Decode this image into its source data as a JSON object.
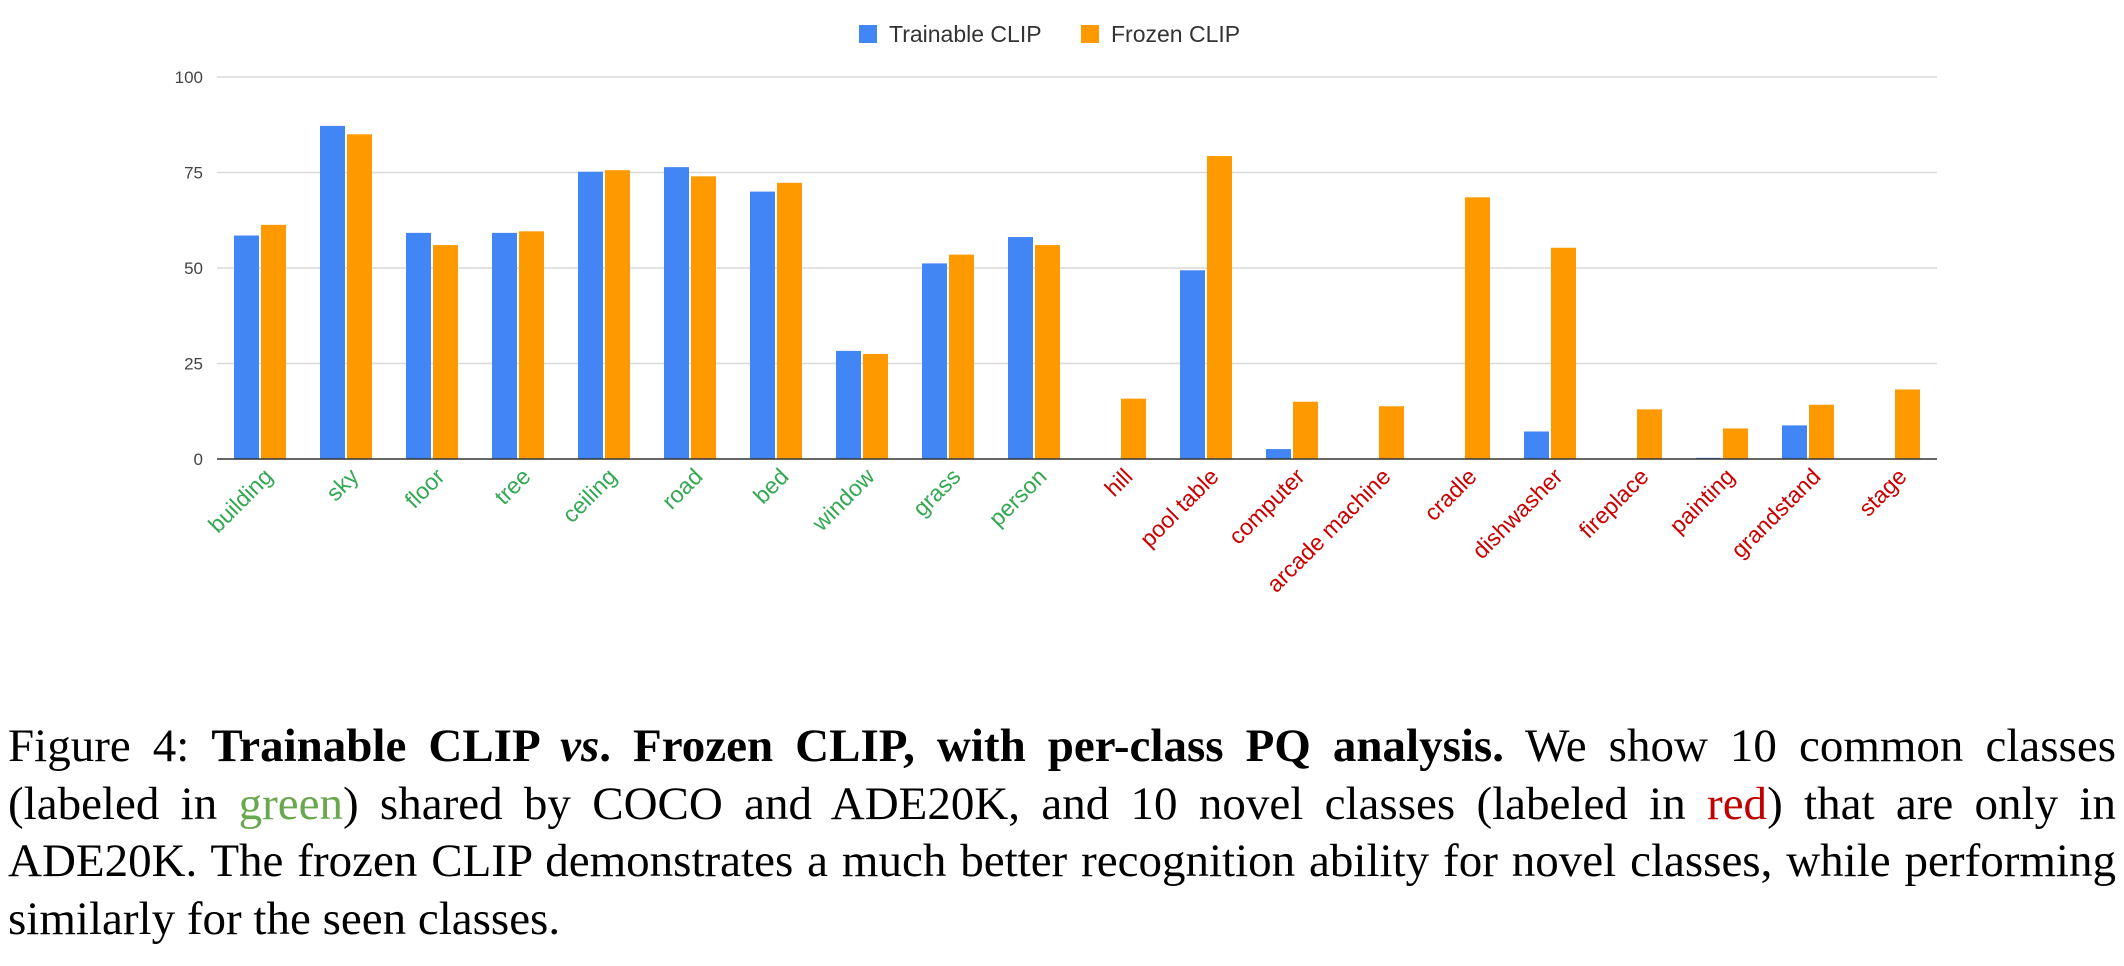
{
  "chart_data": {
    "type": "bar",
    "title": "",
    "xlabel": "",
    "ylabel": "",
    "ylim": [
      0,
      100
    ],
    "yticks": [
      "0",
      "25",
      "50",
      "75",
      "100"
    ],
    "grid": true,
    "legend_position": "top-center",
    "categories": [
      "building",
      "sky",
      "floor",
      "tree",
      "ceiling",
      "road",
      "bed",
      "window",
      "grass",
      "person",
      "hill",
      "pool table",
      "computer",
      "arcade machine",
      "cradle",
      "dishwasher",
      "fireplace",
      "painting",
      "grandstand",
      "stage"
    ],
    "category_groups": [
      "common",
      "common",
      "common",
      "common",
      "common",
      "common",
      "common",
      "common",
      "common",
      "common",
      "novel",
      "novel",
      "novel",
      "novel",
      "novel",
      "novel",
      "novel",
      "novel",
      "novel",
      "novel"
    ],
    "series": [
      {
        "name": "Trainable CLIP",
        "color": "#4285f4",
        "values": [
          58.5,
          87.2,
          59.2,
          59.2,
          75.2,
          76.4,
          70.0,
          28.3,
          51.2,
          58.1,
          0,
          49.4,
          2.6,
          0,
          0,
          7.2,
          0,
          0.3,
          8.8,
          0
        ]
      },
      {
        "name": "Frozen CLIP",
        "color": "#ff9900",
        "values": [
          61.3,
          85.0,
          56.0,
          59.6,
          75.6,
          74.0,
          72.3,
          27.5,
          53.5,
          56.0,
          15.8,
          79.3,
          15.0,
          13.8,
          68.5,
          55.3,
          13.0,
          8.0,
          14.2,
          18.2
        ]
      }
    ],
    "label_colors": {
      "common": "#34a853",
      "novel": "#cc0000"
    }
  },
  "caption": {
    "figure_label": "Figure 4:",
    "title_part1": "Trainable CLIP ",
    "title_vs": "vs",
    "title_part2": ". Frozen CLIP, with per-class PQ analysis.",
    "text1": " We show 10 common classes (labeled in ",
    "green_word": "green",
    "text2": ") shared by COCO and ADE20K, and 10 novel classes (labeled in ",
    "red_word": "red",
    "text3": ") that are only in ADE20K. The frozen CLIP demonstrates a much better recognition ability for novel classes, while performing similarly for the seen classes."
  }
}
